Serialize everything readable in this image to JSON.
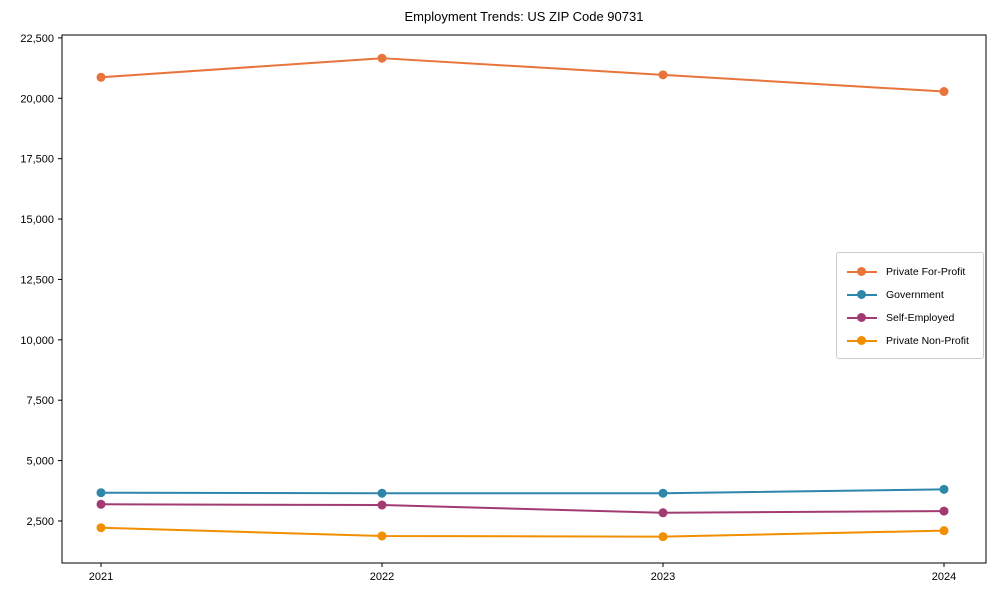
{
  "chart_data": {
    "type": "line",
    "title": "Employment Trends: US ZIP Code 90731",
    "xlabel": "",
    "ylabel": "",
    "categories": [
      "2021",
      "2022",
      "2023",
      "2024"
    ],
    "series": [
      {
        "name": "Private For-Profit",
        "color": "#E8743B",
        "values": [
          20870,
          21660,
          20970,
          20280
        ]
      },
      {
        "name": "Government",
        "color": "#2E86AB",
        "values": [
          3670,
          3650,
          3650,
          3810
        ]
      },
      {
        "name": "Self-Employed",
        "color": "#A23B72",
        "values": [
          3190,
          3160,
          2840,
          2910
        ]
      },
      {
        "name": "Private Non-Profit",
        "color": "#F18F01",
        "values": [
          2220,
          1880,
          1850,
          2100
        ]
      }
    ],
    "y_ticks": [
      2500,
      5000,
      7500,
      10000,
      12500,
      15000,
      17500,
      20000,
      22500
    ],
    "y_tick_labels": [
      "2,500",
      "5,000",
      "7,500",
      "10,000",
      "12,500",
      "15,000",
      "17,500",
      "20,000",
      "22,500"
    ],
    "ylim": [
      760,
      22620
    ],
    "grid": false,
    "legend_position": "center-right",
    "marker": "circle",
    "line_width": 2,
    "marker_radius": 4.5,
    "frame_color": "#000000",
    "background_color": "#ffffff"
  }
}
